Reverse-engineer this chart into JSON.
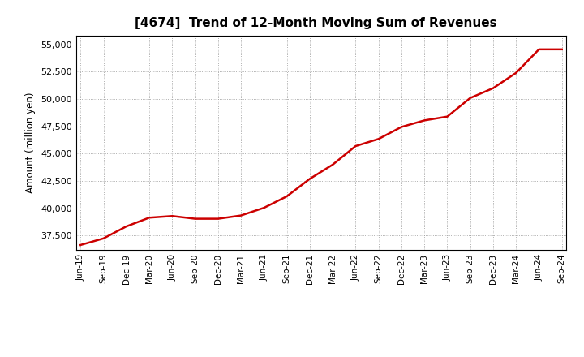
{
  "title": "[4674]  Trend of 12-Month Moving Sum of Revenues",
  "ylabel": "Amount (million yen)",
  "line_color": "#cc0000",
  "line_width": 1.8,
  "background_color": "#ffffff",
  "grid_color": "#999999",
  "ylim": [
    36200,
    55800
  ],
  "yticks": [
    37500,
    40000,
    42500,
    45000,
    47500,
    50000,
    52500,
    55000
  ],
  "x_labels": [
    "Jun-19",
    "Sep-19",
    "Dec-19",
    "Mar-20",
    "Jun-20",
    "Sep-20",
    "Dec-20",
    "Mar-21",
    "Jun-21",
    "Sep-21",
    "Dec-21",
    "Mar-22",
    "Jun-22",
    "Sep-22",
    "Dec-22",
    "Mar-23",
    "Jun-23",
    "Sep-23",
    "Dec-23",
    "Mar-24",
    "Jun-24",
    "Sep-24"
  ],
  "data_points": [
    36650,
    37250,
    38350,
    39150,
    39300,
    39050,
    39050,
    39350,
    40050,
    41100,
    42700,
    44000,
    45700,
    46350,
    47450,
    48050,
    48400,
    50100,
    51000,
    52400,
    54550,
    54550
  ]
}
